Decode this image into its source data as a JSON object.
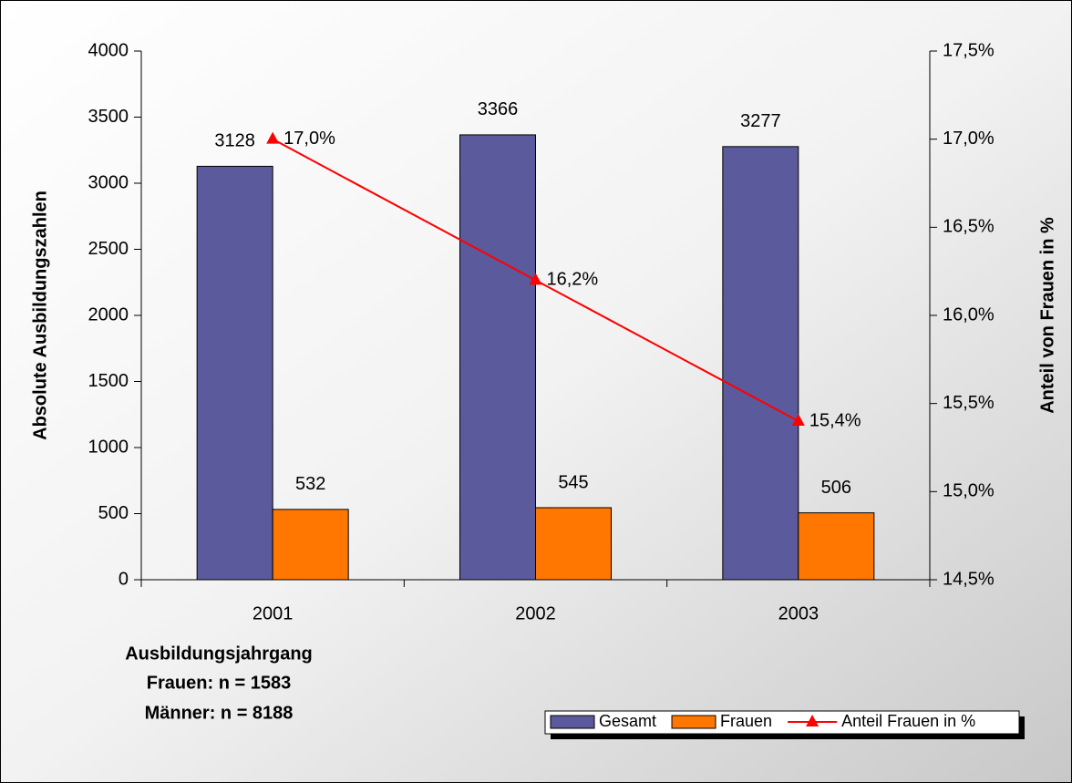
{
  "chart_data": {
    "type": "bar",
    "x_label": "Ausbildungsjahrgang",
    "y_label": "Absolute Ausbildungszahlen",
    "y2_label": "Anteil von Frauen in %",
    "annotations": [
      "Frauen: n = 1583",
      "Männer: n = 8188"
    ],
    "categories": [
      "2001",
      "2002",
      "2003"
    ],
    "series": [
      {
        "name": "Gesamt",
        "type": "bar",
        "color": "#5a5a9c",
        "values": [
          3128,
          3366,
          3277
        ]
      },
      {
        "name": "Frauen",
        "type": "bar",
        "color": "#ff7700",
        "values": [
          532,
          545,
          506
        ]
      },
      {
        "name": "Anteil Frauen in %",
        "type": "line",
        "axis": "y2",
        "color": "#ff0000",
        "values": [
          17.0,
          16.2,
          15.4
        ],
        "value_labels": [
          "17,0%",
          "16,2%",
          "15,4%"
        ]
      }
    ],
    "ylim": [
      0,
      4000
    ],
    "yticks": [
      0,
      500,
      1000,
      1500,
      2000,
      2500,
      3000,
      3500,
      4000
    ],
    "y2lim": [
      14.5,
      17.5
    ],
    "y2ticks": [
      {
        "value": 14.5,
        "label": "14,5%"
      },
      {
        "value": 15.0,
        "label": "15,0%"
      },
      {
        "value": 15.5,
        "label": "15,5%"
      },
      {
        "value": 16.0,
        "label": "16,0%"
      },
      {
        "value": 16.5,
        "label": "16,5%"
      },
      {
        "value": 17.0,
        "label": "17,0%"
      },
      {
        "value": 17.5,
        "label": "17,5%"
      }
    ],
    "legend": "bottom-right",
    "grid": false
  }
}
